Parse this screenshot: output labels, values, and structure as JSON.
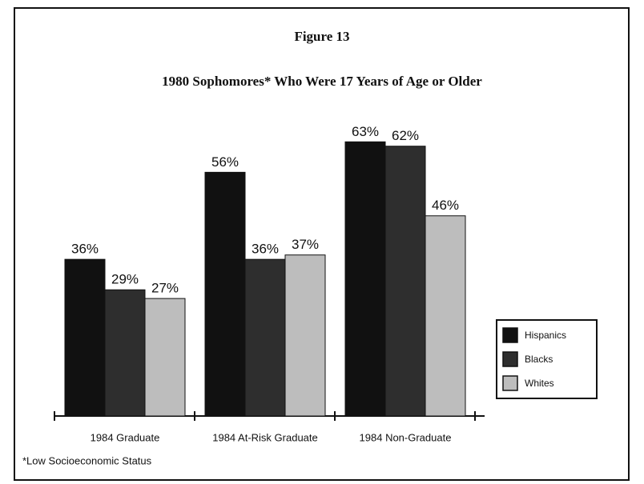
{
  "chart_data": {
    "type": "bar",
    "title": "Figure 13",
    "subtitle": "1980 Sophomores* Who Were 17 Years of Age or Older",
    "categories": [
      "1984 Graduate",
      "1984 At-Risk Graduate",
      "1984 Non-Graduate"
    ],
    "series": [
      {
        "name": "Hispanics",
        "color": "#111111",
        "values": [
          36,
          56,
          63
        ],
        "value_labels": [
          "36%",
          "56%",
          "63%"
        ]
      },
      {
        "name": "Blacks",
        "color": "#2e2e2e",
        "values": [
          29,
          36,
          62
        ],
        "value_labels": [
          "29%",
          "36%",
          "62%"
        ]
      },
      {
        "name": "Whites",
        "color": "#bdbdbd",
        "values": [
          27,
          37,
          46
        ],
        "value_labels": [
          "27%",
          "37%",
          "46%"
        ]
      }
    ],
    "note": "*Low Socioeconomic Status",
    "legend": "right"
  }
}
